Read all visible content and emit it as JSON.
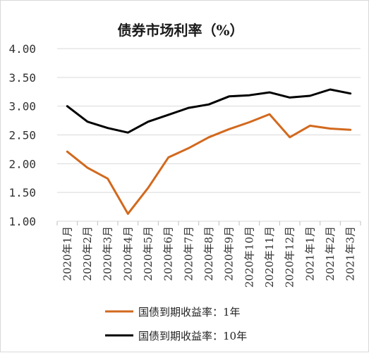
{
  "chart_data": {
    "type": "line",
    "title": "债券市场利率（%）",
    "categories": [
      "2020年1月",
      "2020年2月",
      "2020年3月",
      "2020年4月",
      "2020年5月",
      "2020年6月",
      "2020年7月",
      "2020年8月",
      "2020年9月",
      "2020年10月",
      "2020年11月",
      "2020年12月",
      "2021年1月",
      "2021年2月",
      "2021年3月"
    ],
    "ylim": [
      1.0,
      4.0
    ],
    "yticks": [
      "4.00",
      "3.50",
      "3.00",
      "2.50",
      "2.00",
      "1.50",
      "1.00"
    ],
    "ytick_values": [
      4.0,
      3.5,
      3.0,
      2.5,
      2.0,
      1.5,
      1.0
    ],
    "grid": true,
    "legend_position": "bottom",
    "series": [
      {
        "name": "国债到期收益率：1年",
        "color": "#d2691e",
        "values": [
          2.21,
          1.93,
          1.74,
          1.13,
          1.58,
          2.11,
          2.27,
          2.46,
          2.6,
          2.72,
          2.86,
          2.46,
          2.66,
          2.61,
          2.59
        ]
      },
      {
        "name": "国债到期收益率：10年",
        "color": "#000000",
        "values": [
          3.0,
          2.73,
          2.62,
          2.54,
          2.73,
          2.85,
          2.97,
          3.03,
          3.17,
          3.19,
          3.24,
          3.15,
          3.18,
          3.29,
          3.22
        ]
      }
    ]
  }
}
